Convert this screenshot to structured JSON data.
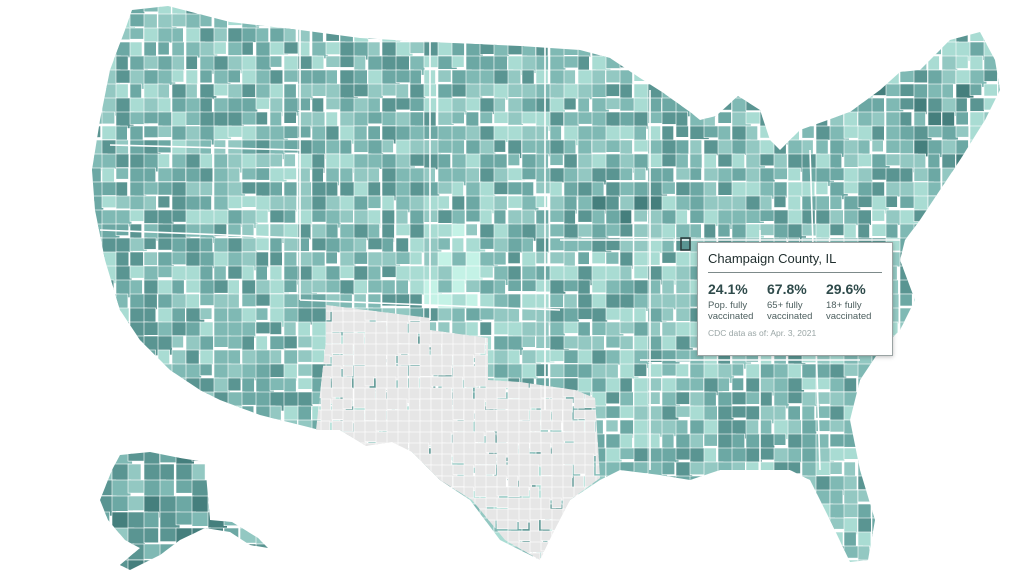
{
  "map": {
    "colors": {
      "no_data": "#e6e6e6",
      "ramp": [
        "#c4f2e6",
        "#a9dcd3",
        "#93c8c2",
        "#7fb9b4",
        "#6ca8a4",
        "#5a9592",
        "#457f7d",
        "#2f6766",
        "#1a4a4a"
      ],
      "county_border": "#ffffff",
      "highlight_border": "#2b3a3a"
    },
    "highlighted_county": "Champaign County, IL"
  },
  "tooltip": {
    "title": "Champaign County, IL",
    "stats": [
      {
        "value": "24.1%",
        "label_line1": "Pop. fully",
        "label_line2": "vaccinated"
      },
      {
        "value": "67.8%",
        "label_line1": "65+ fully",
        "label_line2": "vaccinated"
      },
      {
        "value": "29.6%",
        "label_line1": "18+ fully",
        "label_line2": "vaccinated"
      }
    ],
    "note": "CDC data as of: Apr. 3, 2021"
  }
}
